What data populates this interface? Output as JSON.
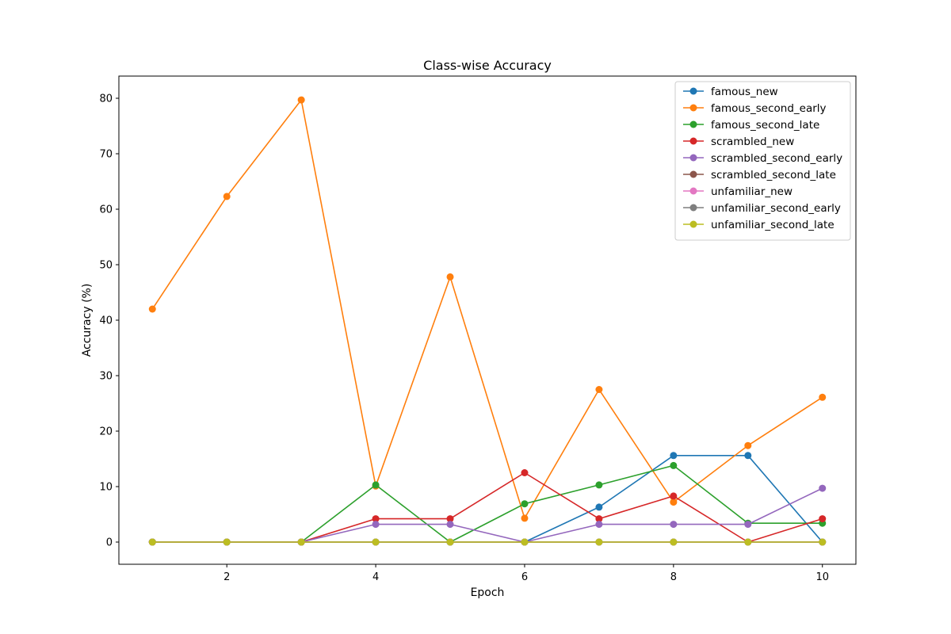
{
  "chart_data": {
    "type": "line",
    "title": "Class-wise Accuracy",
    "xlabel": "Epoch",
    "ylabel": "Accuracy (%)",
    "x": [
      1,
      2,
      3,
      4,
      5,
      6,
      7,
      8,
      9,
      10
    ],
    "xlim": [
      0.55,
      10.45
    ],
    "ylim": [
      -4,
      84
    ],
    "xticks": [
      2,
      4,
      6,
      8,
      10
    ],
    "yticks": [
      0,
      10,
      20,
      30,
      40,
      50,
      60,
      70,
      80
    ],
    "grid": false,
    "legend_position": "top-right",
    "series": [
      {
        "name": "famous_new",
        "color": "#1f77b4",
        "values": [
          0,
          0,
          0,
          0,
          0,
          0,
          6.3,
          15.6,
          15.6,
          0
        ]
      },
      {
        "name": "famous_second_early",
        "color": "#ff7f0e",
        "values": [
          42.0,
          62.3,
          79.7,
          10.1,
          47.8,
          4.3,
          27.5,
          7.2,
          17.4,
          26.1
        ]
      },
      {
        "name": "famous_second_late",
        "color": "#2ca02c",
        "values": [
          0,
          0,
          0,
          10.3,
          0,
          6.9,
          10.3,
          13.8,
          3.4,
          3.4
        ]
      },
      {
        "name": "scrambled_new",
        "color": "#d62728",
        "values": [
          0,
          0,
          0,
          4.2,
          4.2,
          12.5,
          4.2,
          8.3,
          0,
          4.2
        ]
      },
      {
        "name": "scrambled_second_early",
        "color": "#9467bd",
        "values": [
          0,
          0,
          0,
          3.2,
          3.2,
          0,
          3.2,
          3.2,
          3.2,
          9.7
        ]
      },
      {
        "name": "scrambled_second_late",
        "color": "#8c564b",
        "values": [
          0,
          0,
          0,
          0,
          0,
          0,
          0,
          0,
          0,
          0
        ]
      },
      {
        "name": "unfamiliar_new",
        "color": "#e377c2",
        "values": [
          0,
          0,
          0,
          0,
          0,
          0,
          0,
          0,
          0,
          0
        ]
      },
      {
        "name": "unfamiliar_second_early",
        "color": "#7f7f7f",
        "values": [
          0,
          0,
          0,
          0,
          0,
          0,
          0,
          0,
          0,
          0
        ]
      },
      {
        "name": "unfamiliar_second_late",
        "color": "#bcbd22",
        "values": [
          0,
          0,
          0,
          0,
          0,
          0,
          0,
          0,
          0,
          0
        ]
      }
    ]
  }
}
